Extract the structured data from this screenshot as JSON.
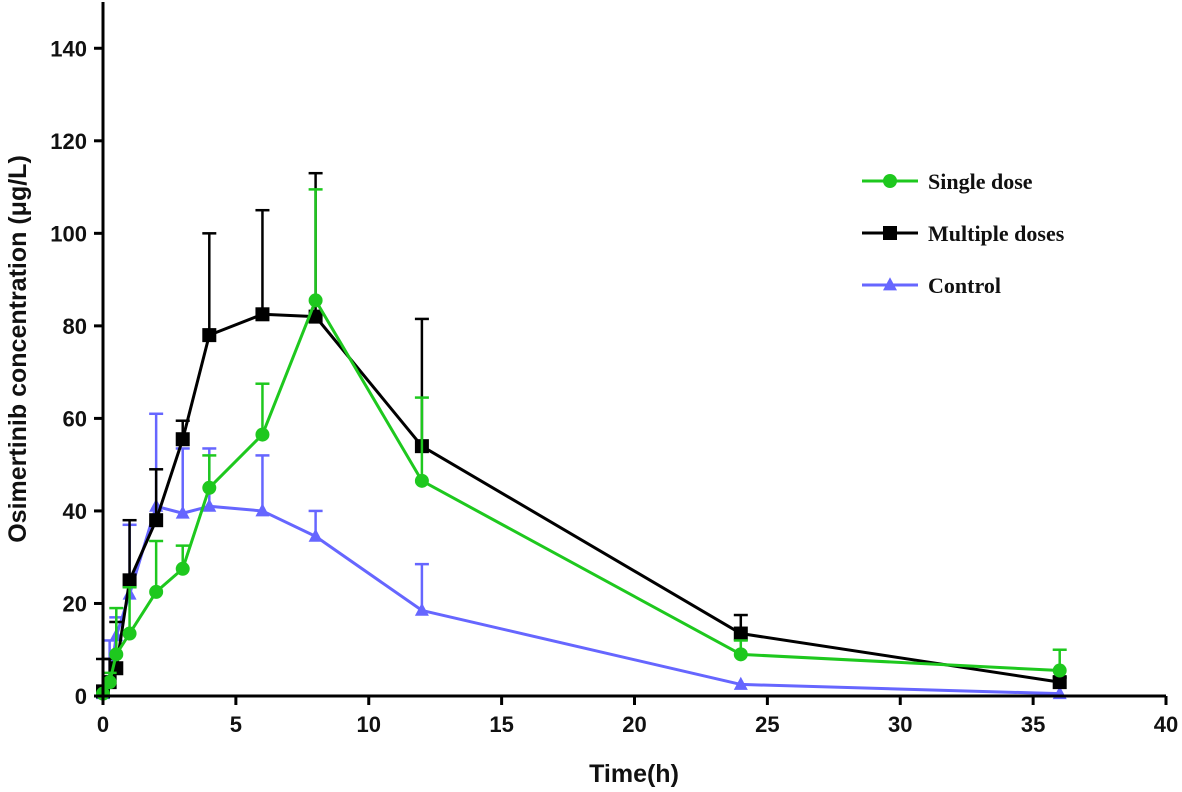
{
  "chart_data": {
    "type": "line",
    "title": "",
    "xlabel": "Time(h)",
    "ylabel": "Osimertinib concentration (μg/L)",
    "xlim": [
      0,
      40
    ],
    "ylim": [
      0,
      150
    ],
    "xticks": [
      0,
      5,
      10,
      15,
      20,
      25,
      30,
      35,
      40
    ],
    "yticks": [
      0,
      20,
      40,
      60,
      80,
      100,
      120,
      140
    ],
    "grid": false,
    "legend_position": "top-right",
    "series": [
      {
        "name": "Single dose",
        "color": "#1ec81e",
        "marker": "circle",
        "x": [
          0,
          0.25,
          0.5,
          1,
          2,
          3,
          4,
          6,
          8,
          12,
          24,
          36
        ],
        "y": [
          0.5,
          3,
          9,
          13.5,
          22.5,
          27.5,
          45,
          56.5,
          85.5,
          46.5,
          9,
          5.5
        ],
        "error": [
          0,
          2,
          10,
          10,
          11,
          5,
          7,
          11,
          24,
          18,
          3,
          4.5
        ]
      },
      {
        "name": "Multiple doses",
        "color": "#000000",
        "marker": "square",
        "x": [
          0,
          0.25,
          0.5,
          1,
          2,
          3,
          4,
          6,
          8,
          12,
          24,
          36
        ],
        "y": [
          1,
          3,
          6,
          25,
          38,
          55.5,
          78,
          82.5,
          82,
          54,
          13.5,
          3
        ],
        "error": [
          7,
          5,
          10,
          13,
          11,
          4,
          22,
          22.5,
          31,
          27.5,
          4,
          1
        ]
      },
      {
        "name": "Control",
        "color": "#6666ff",
        "marker": "triangle",
        "x": [
          0,
          0.25,
          0.5,
          1,
          2,
          3,
          4,
          6,
          8,
          12,
          24,
          36
        ],
        "y": [
          0.5,
          3,
          13,
          22,
          41,
          39.5,
          41,
          40,
          34.5,
          18.5,
          2.5,
          0.5
        ],
        "error": [
          0,
          9,
          4,
          15,
          20,
          14,
          12.5,
          12,
          5.5,
          10,
          0,
          0
        ]
      }
    ]
  }
}
